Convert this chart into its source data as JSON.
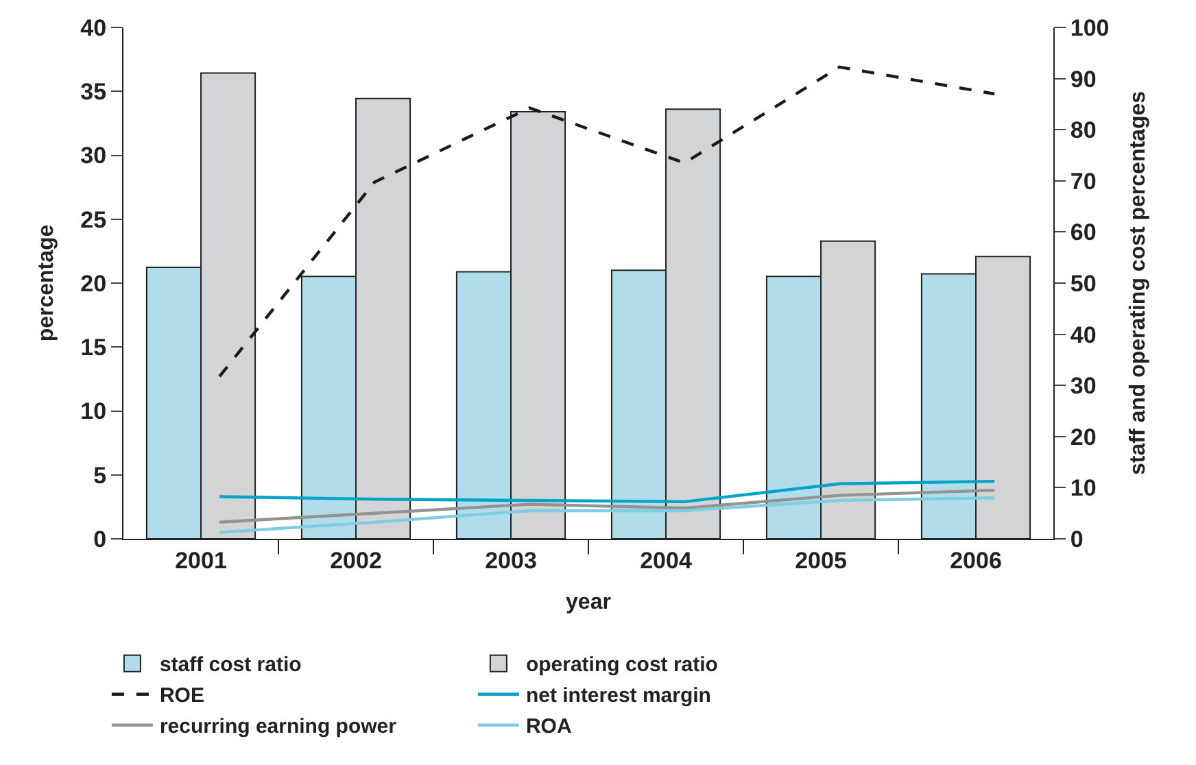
{
  "chart_data": {
    "type": "bar",
    "xlabel": "year",
    "ylabel": "percentage",
    "y2label": "staff and operating cost percentages",
    "categories": [
      "2001",
      "2002",
      "2003",
      "2004",
      "2005",
      "2006"
    ],
    "series": [
      {
        "name": "staff cost ratio",
        "axis": "y2",
        "color": "#b0dde9",
        "values": [
          53.1,
          51.3,
          52.2,
          52.5,
          51.3,
          51.8
        ]
      },
      {
        "name": "operating cost ratio",
        "axis": "y2",
        "color": "#d3d4d6",
        "values": [
          91.1,
          86.1,
          83.5,
          84.0,
          58.2,
          55.2
        ]
      },
      {
        "name": "ROE",
        "type": "line",
        "color": "#1a1a1a",
        "line_style": "dashed",
        "values": [
          12.7,
          27.9,
          33.7,
          29.4,
          36.9,
          34.8
        ]
      },
      {
        "name": "net interest margin",
        "type": "line",
        "color": "#00a3c8",
        "line_style": "solid",
        "values": [
          3.3,
          3.1,
          3.0,
          2.9,
          4.3,
          4.5
        ]
      },
      {
        "name": "recurring earning power",
        "type": "line",
        "color": "#939393",
        "line_style": "solid",
        "values": [
          1.3,
          2.0,
          2.7,
          2.4,
          3.4,
          3.8
        ]
      },
      {
        "name": "ROA",
        "type": "line",
        "color": "#7fcde0",
        "line_style": "solid",
        "values": [
          0.5,
          1.3,
          2.2,
          2.2,
          3.0,
          3.2
        ]
      }
    ],
    "ylim": [
      0,
      40
    ],
    "yticks": [
      0,
      5,
      10,
      15,
      20,
      25,
      30,
      35,
      40
    ],
    "y2lim": [
      0,
      100
    ],
    "y2ticks": [
      0,
      10,
      20,
      30,
      40,
      50,
      60,
      70,
      80,
      90,
      100
    ],
    "legend": "bottom",
    "marker": "none"
  }
}
